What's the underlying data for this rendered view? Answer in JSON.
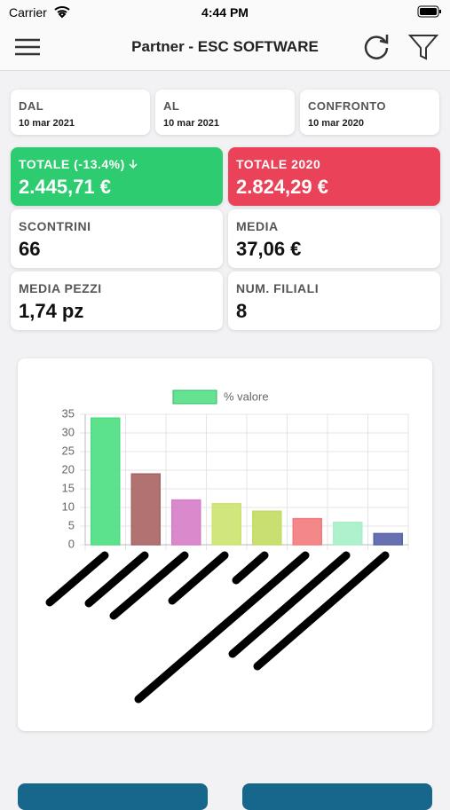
{
  "status_bar": {
    "carrier": "Carrier",
    "time": "4:44 PM"
  },
  "header": {
    "title": "Partner - ESC SOFTWARE"
  },
  "date_cards": [
    {
      "label": "DAL",
      "value": "10 mar 2021"
    },
    {
      "label": "AL",
      "value": "10 mar 2021"
    },
    {
      "label": "CONFRONTO",
      "value": "10 mar 2020"
    }
  ],
  "totals": [
    {
      "label": "TOTALE (-13.4%)",
      "value": "2.445,71 €"
    },
    {
      "label": "TOTALE 2020",
      "value": "2.824,29 €"
    }
  ],
  "stats": [
    {
      "label": "SCONTRINI",
      "value": "66"
    },
    {
      "label": "MEDIA",
      "value": "37,06 €"
    },
    {
      "label": "MEDIA PEZZI",
      "value": "1,74 pz"
    },
    {
      "label": "NUM. FILIALI",
      "value": "8"
    }
  ],
  "chart_data": {
    "type": "bar",
    "categories": [
      null,
      null,
      null,
      null,
      null,
      null,
      null,
      null
    ],
    "series": [
      {
        "name": "% valore",
        "color": "#4ade80",
        "values": [
          34,
          19,
          12,
          11,
          9,
          7,
          6,
          3
        ],
        "colors": [
          "#4ade80",
          "#a86462",
          "#d67cc8",
          "#cce36e",
          "#c3dc62",
          "#f27a7c",
          "#a6f0c8",
          "#5762a8"
        ]
      }
    ],
    "ylim": [
      0,
      35
    ],
    "yticks": [
      0,
      5,
      10,
      15,
      20,
      25,
      30,
      35
    ],
    "grid": true
  }
}
